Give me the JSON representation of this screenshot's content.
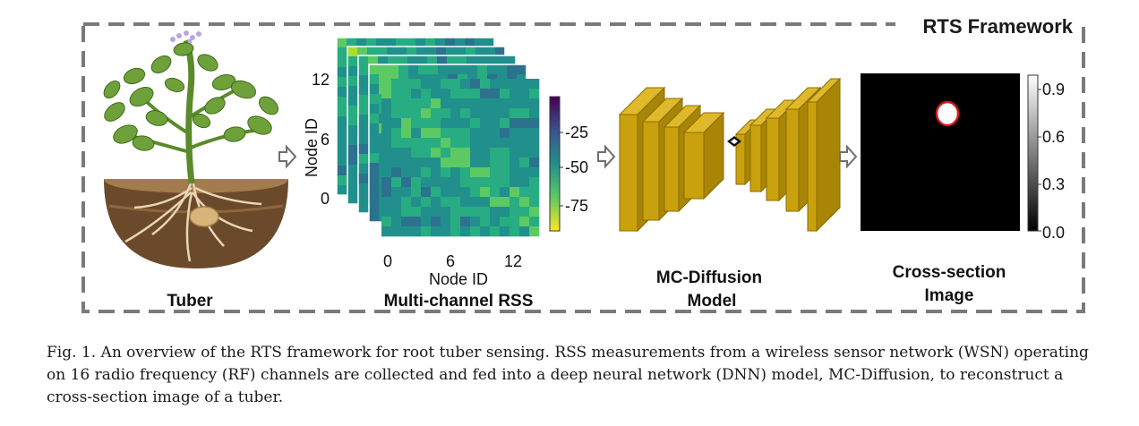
{
  "framework": {
    "title": "RTS Framework"
  },
  "tuber": {
    "label": "Tuber"
  },
  "rss": {
    "label": "Multi-channel RSS",
    "y_axis_label": "Node ID",
    "x_axis_label": "Node ID",
    "y_ticks": [
      "12",
      "6",
      "0"
    ],
    "x_ticks": [
      "0",
      "6",
      "12"
    ],
    "colorbar_ticks": [
      "-25",
      "-50",
      "-75"
    ]
  },
  "model": {
    "label_line1": "MC-Diffusion",
    "label_line2": "Model"
  },
  "output": {
    "label_line1": "Cross-section",
    "label_line2": "Image",
    "colorbar_ticks": [
      "0.9",
      "0.6",
      "0.3",
      "0.0"
    ]
  },
  "caption": "Fig. 1.  An overview of the RTS framework for root tuber sensing. RSS measurements from a wireless sensor network (WSN) operating on 16 radio frequency (RF) channels are collected and fed into a deep neural network (DNN) model, MC-Diffusion, to reconstruct a cross-section image of a tuber.",
  "colors": {
    "box_fill": "#c9a10c",
    "box_edge": "#8a6d00",
    "dash": "#7a7a7a",
    "leaf": "#6ea13a",
    "soil": "#6b4a2b"
  }
}
